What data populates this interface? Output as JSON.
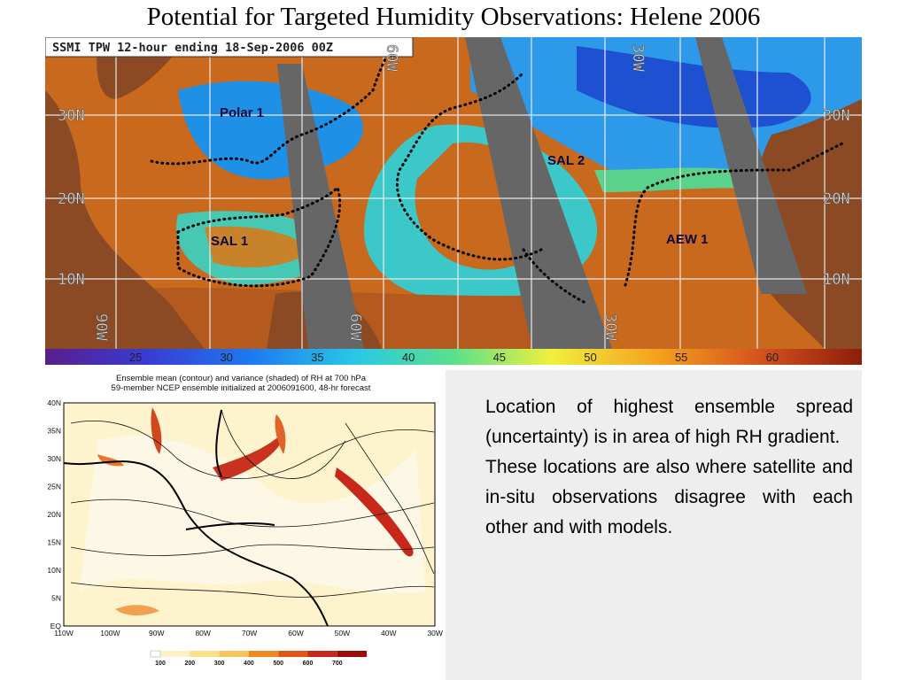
{
  "title": "Potential for Targeted Humidity Observations: Helene 2006",
  "satellite_map": {
    "header": "SSMI TPW 12-hour ending 18-Sep-2006 00Z",
    "regions": [
      "Polar 1",
      "SAL 2",
      "SAL 1",
      "AEW 1"
    ],
    "lat_labels_left": [
      "30N",
      "20N",
      "10N"
    ],
    "lat_labels_right": [
      "30N",
      "20N",
      "10N"
    ],
    "lon_labels_top": [
      "60W",
      "30W"
    ],
    "lon_labels_bottom": [
      "90W",
      "60W",
      "30W"
    ],
    "colorbar_labels": [
      25,
      30,
      35,
      40,
      45,
      50,
      55,
      60
    ]
  },
  "ensemble_map": {
    "title_lines": [
      "Ensemble mean (contour) and variance (shaded) of RH at 700 hPa",
      "59-member NCEP ensemble initialized at 2006091600, 48-hr forecast"
    ],
    "lat_labels": [
      "40N",
      "35N",
      "30N",
      "25N",
      "20N",
      "15N",
      "10N",
      "5N",
      "EQ"
    ],
    "lon_labels": [
      "110W",
      "100W",
      "90W",
      "80W",
      "70W",
      "60W",
      "50W",
      "40W",
      "30W"
    ],
    "colorbar_labels": [
      100,
      200,
      300,
      400,
      500,
      600,
      700
    ]
  },
  "text": {
    "paragraphs": [
      "Location of highest ensemble spread (uncertainty) is in area of high RH gradient.",
      "These locations are also where satellite and in-situ observations disagree with each other and with models."
    ]
  }
}
